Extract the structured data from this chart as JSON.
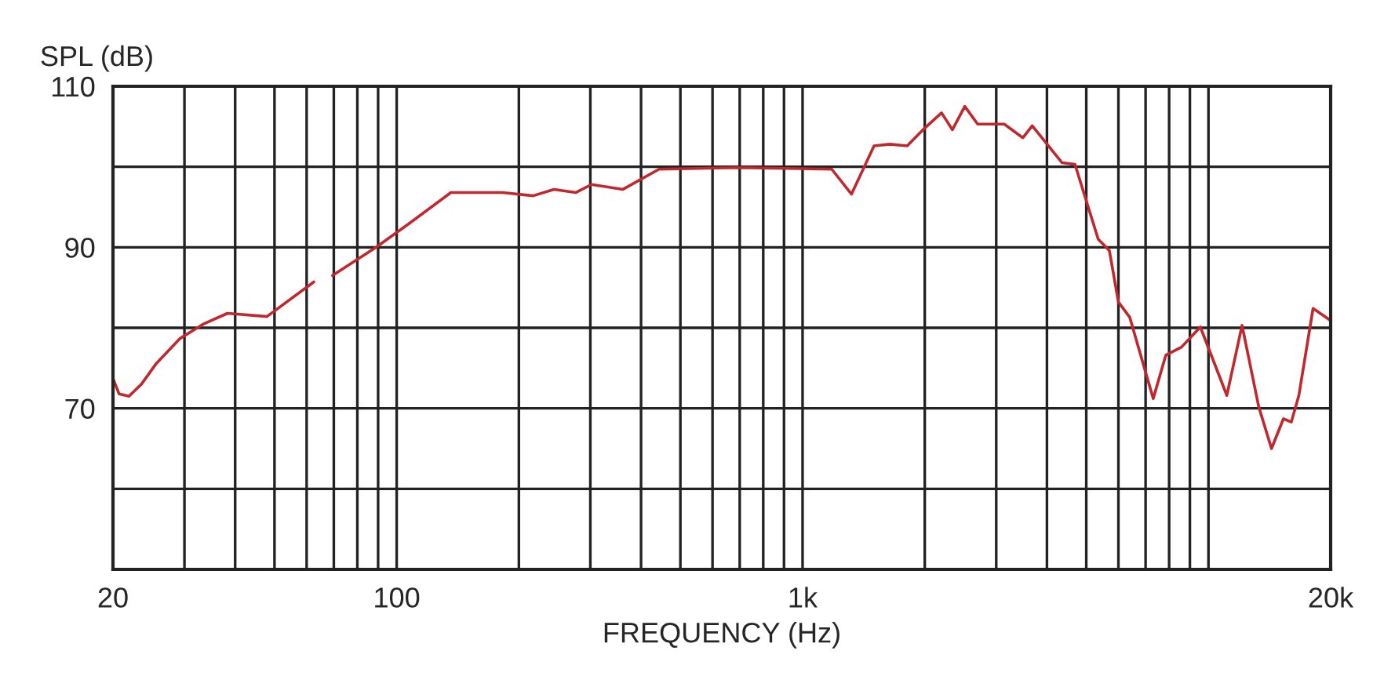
{
  "chart_data": {
    "type": "line",
    "xlabel": "FREQUENCY (Hz)",
    "ylabel": "SPL (dB)",
    "log": "x",
    "grid": true,
    "marker": "none",
    "line_style": "solid",
    "xlim": [
      20,
      20000
    ],
    "ylim": [
      50,
      110
    ],
    "xticks": [
      20,
      {
        "value": 30,
        "label": null
      },
      {
        "value": 40,
        "label": null
      },
      {
        "value": 50,
        "label": null
      },
      {
        "value": 60,
        "label": null
      },
      {
        "value": 70,
        "label": null
      },
      {
        "value": 80,
        "label": null
      },
      {
        "value": 90,
        "label": null
      },
      100,
      {
        "value": 200,
        "label": null
      },
      {
        "value": 300,
        "label": null
      },
      {
        "value": 400,
        "label": null
      },
      {
        "value": 500,
        "label": null
      },
      {
        "value": 600,
        "label": null
      },
      {
        "value": 700,
        "label": null
      },
      {
        "value": 800,
        "label": null
      },
      {
        "value": 900,
        "label": null
      },
      {
        "value": 1000,
        "label": "1k"
      },
      {
        "value": 2000,
        "label": null
      },
      {
        "value": 3000,
        "label": null
      },
      {
        "value": 4000,
        "label": null
      },
      {
        "value": 5000,
        "label": null
      },
      {
        "value": 6000,
        "label": null
      },
      {
        "value": 7000,
        "label": null
      },
      {
        "value": 8000,
        "label": null
      },
      {
        "value": 9000,
        "label": null
      },
      {
        "value": 10000,
        "label": null
      },
      {
        "value": 20000,
        "label": "20k"
      }
    ],
    "yticks": [
      {
        "value": 50,
        "label": null
      },
      {
        "value": 60,
        "label": null
      },
      70,
      {
        "value": 80,
        "label": null
      },
      90,
      {
        "value": 100,
        "label": null
      },
      110
    ],
    "series": [
      {
        "color": "#c0282d",
        "x": [
          20,
          20.7,
          21.9,
          23.5,
          25.6,
          29.3,
          33.5,
          38.3,
          47.9,
          62.5,
          66,
          69.5,
          89,
          107,
          136,
          182,
          217,
          244,
          276,
          302,
          361,
          443,
          690,
          1180,
          1320,
          1500,
          1640,
          1810,
          1980,
          2200,
          2340,
          2510,
          2700,
          3140,
          3490,
          3680,
          4360,
          4690,
          5350,
          5700,
          6000,
          6400,
          7310,
          7850,
          8580,
          9550,
          11100,
          12100,
          13300,
          14300,
          15300,
          16000,
          16700,
          18100,
          20000
        ],
        "values": [
          73.7,
          71.8,
          71.5,
          73,
          75.6,
          78.7,
          80.5,
          81.8,
          81.4,
          85.7,
          null,
          86.5,
          90,
          92.9,
          96.8,
          96.8,
          96.4,
          97.2,
          96.8,
          97.8,
          97.2,
          99.7,
          99.9,
          99.7,
          96.6,
          102.6,
          102.8,
          102.6,
          104.6,
          106.7,
          104.6,
          107.5,
          105.3,
          105.3,
          103.6,
          105.1,
          100.5,
          100.3,
          91,
          89.6,
          83.2,
          81.3,
          71.2,
          76.6,
          77.6,
          80.1,
          71.6,
          80.3,
          70.2,
          65,
          68.7,
          68.3,
          71.6,
          82.4,
          80.9
        ]
      }
    ]
  }
}
